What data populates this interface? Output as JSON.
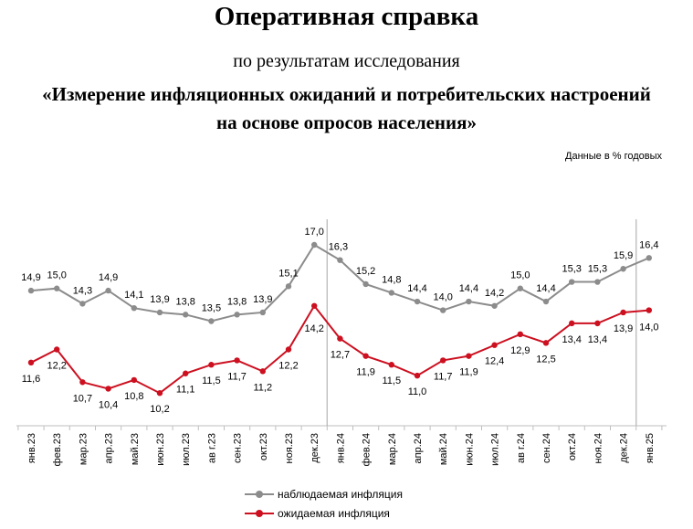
{
  "header": {
    "title": "Оперативная справка",
    "subtitle": "по результатам исследования",
    "heading_line1": "«Измерение инфляционных ожиданий и потребительских настроений",
    "heading_line2": "на основе опросов населения»",
    "units_note": "Данные в % годовых"
  },
  "chart_data": {
    "type": "line",
    "title": "",
    "xlabel": "",
    "ylabel": "",
    "ylim": [
      8.7,
      17.8
    ],
    "grid": false,
    "legend_position": "bottom",
    "categories": [
      "янв.23",
      "фев.23",
      "мар.23",
      "апр.23",
      "май.23",
      "июн.23",
      "июл.23",
      "ав г.23",
      "сен.23",
      "окт.23",
      "ноя.23",
      "дек.23",
      "янв.24",
      "фев.24",
      "мар.24",
      "апр.24",
      "май.24",
      "июн.24",
      "июл.24",
      "ав г.24",
      "сен.24",
      "окт.24",
      "ноя.24",
      "дек.24",
      "янв.25"
    ],
    "vertical_markers": [
      "дек.23",
      "янв.25"
    ],
    "series": [
      {
        "name": "наблюдаемая  инфляция",
        "color": "#8c8c8c",
        "values": [
          14.9,
          15.0,
          14.3,
          14.9,
          14.1,
          13.9,
          13.8,
          13.5,
          13.8,
          13.9,
          15.1,
          17.0,
          16.3,
          15.2,
          14.8,
          14.4,
          14.0,
          14.4,
          14.2,
          15.0,
          14.4,
          15.3,
          15.3,
          15.9,
          16.4
        ],
        "labels": [
          "14,9",
          "15,0",
          "14,3",
          "14,9",
          "14,1",
          "13,9",
          "13,8",
          "13,5",
          "13,8",
          "13,9",
          "15,1",
          "17,0",
          "16,3",
          "15,2",
          "14,8",
          "14,4",
          "14,0",
          "14,4",
          "14,2",
          "15,0",
          "14,4",
          "15,3",
          "15,3",
          "15,9",
          "16,4"
        ]
      },
      {
        "name": "ожидаемая  инфляция",
        "color": "#cc1020",
        "values": [
          11.6,
          12.2,
          10.7,
          10.4,
          10.8,
          10.2,
          11.1,
          11.5,
          11.7,
          11.2,
          12.2,
          14.2,
          12.7,
          11.9,
          11.5,
          11.0,
          11.7,
          11.9,
          12.4,
          12.9,
          12.5,
          13.4,
          13.4,
          13.9,
          14.0
        ],
        "labels": [
          "11,6",
          "12,2",
          "10,7",
          "10,4",
          "10,8",
          "10,2",
          "11,1",
          "11,5",
          "11,7",
          "11,2",
          "12,2",
          "14,2",
          "12,7",
          "11,9",
          "11,5",
          "11,0",
          "11,7",
          "11,9",
          "12,4",
          "12,9",
          "12,5",
          "13,4",
          "13,4",
          "13,9",
          "14,0"
        ]
      }
    ]
  }
}
